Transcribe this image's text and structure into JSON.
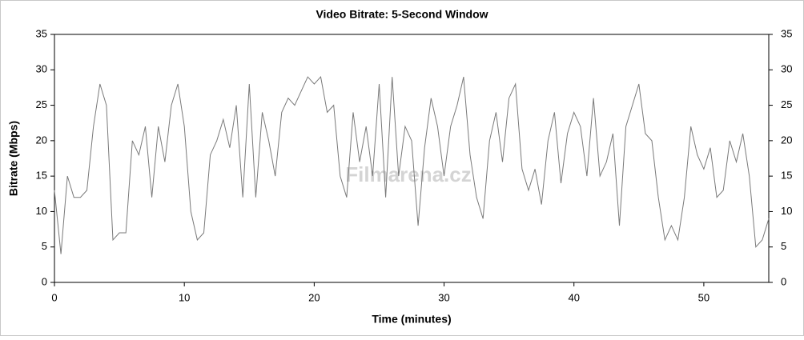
{
  "chart_data": {
    "type": "line",
    "title": "Video Bitrate: 5-Second Window",
    "x_label": "Time (minutes)",
    "y_label": "Bitrate (Mbps)",
    "watermark": "Filmarena.cz",
    "x": [
      0,
      0.5,
      1,
      1.5,
      2,
      2.5,
      3,
      3.5,
      4,
      4.5,
      5,
      5.5,
      6,
      6.5,
      7,
      7.5,
      8,
      8.5,
      9,
      9.5,
      10,
      10.5,
      11,
      11.5,
      12,
      12.5,
      13,
      13.5,
      14,
      14.5,
      15,
      15.5,
      16,
      16.5,
      17,
      17.5,
      18,
      18.5,
      19,
      19.5,
      20,
      20.5,
      21,
      21.5,
      22,
      22.5,
      23,
      23.5,
      24,
      24.5,
      25,
      25.5,
      26,
      26.5,
      27,
      27.5,
      28,
      28.5,
      29,
      29.5,
      30,
      30.5,
      31,
      31.5,
      32,
      32.5,
      33,
      33.5,
      34,
      34.5,
      35,
      35.5,
      36,
      36.5,
      37,
      37.5,
      38,
      38.5,
      39,
      39.5,
      40,
      40.5,
      41,
      41.5,
      42,
      42.5,
      43,
      43.5,
      44,
      44.5,
      45,
      45.5,
      46,
      46.5,
      47,
      47.5,
      48,
      48.5,
      49,
      49.5,
      50,
      50.5,
      51,
      51.5,
      52,
      52.5,
      53,
      53.5,
      54,
      54.5,
      55
    ],
    "series": [
      {
        "name": "Video Bitrate",
        "color": "#7a7a7a",
        "values": [
          13,
          4,
          15,
          12,
          12,
          13,
          22,
          28,
          25,
          6,
          7,
          7,
          20,
          18,
          22,
          12,
          22,
          17,
          25,
          28,
          22,
          10,
          6,
          7,
          18,
          20,
          23,
          19,
          25,
          12,
          28,
          12,
          24,
          20,
          15,
          24,
          26,
          25,
          27,
          29,
          28,
          29,
          24,
          25,
          15,
          12,
          24,
          17,
          22,
          15,
          28,
          12,
          29,
          15,
          22,
          20,
          8,
          19,
          26,
          22,
          15,
          22,
          25,
          29,
          18,
          12,
          9,
          20,
          24,
          17,
          26,
          28,
          16,
          13,
          16,
          11,
          20,
          24,
          14,
          21,
          24,
          22,
          15,
          26,
          15,
          17,
          21,
          8,
          22,
          25,
          28,
          21,
          20,
          12,
          6,
          8,
          6,
          12,
          22,
          18,
          16,
          19,
          12,
          13,
          20,
          17,
          21,
          15,
          5,
          6,
          9
        ]
      }
    ],
    "xlim": [
      0,
      55
    ],
    "xticks": [
      0,
      10,
      20,
      30,
      40,
      50
    ],
    "ylim": [
      0,
      35
    ],
    "yticks": [
      0,
      5,
      10,
      15,
      20,
      25,
      30,
      35
    ],
    "y2lim": [
      0,
      35
    ],
    "y2ticks": [
      0,
      5,
      10,
      15,
      20,
      25,
      30,
      35
    ],
    "grid": false
  }
}
